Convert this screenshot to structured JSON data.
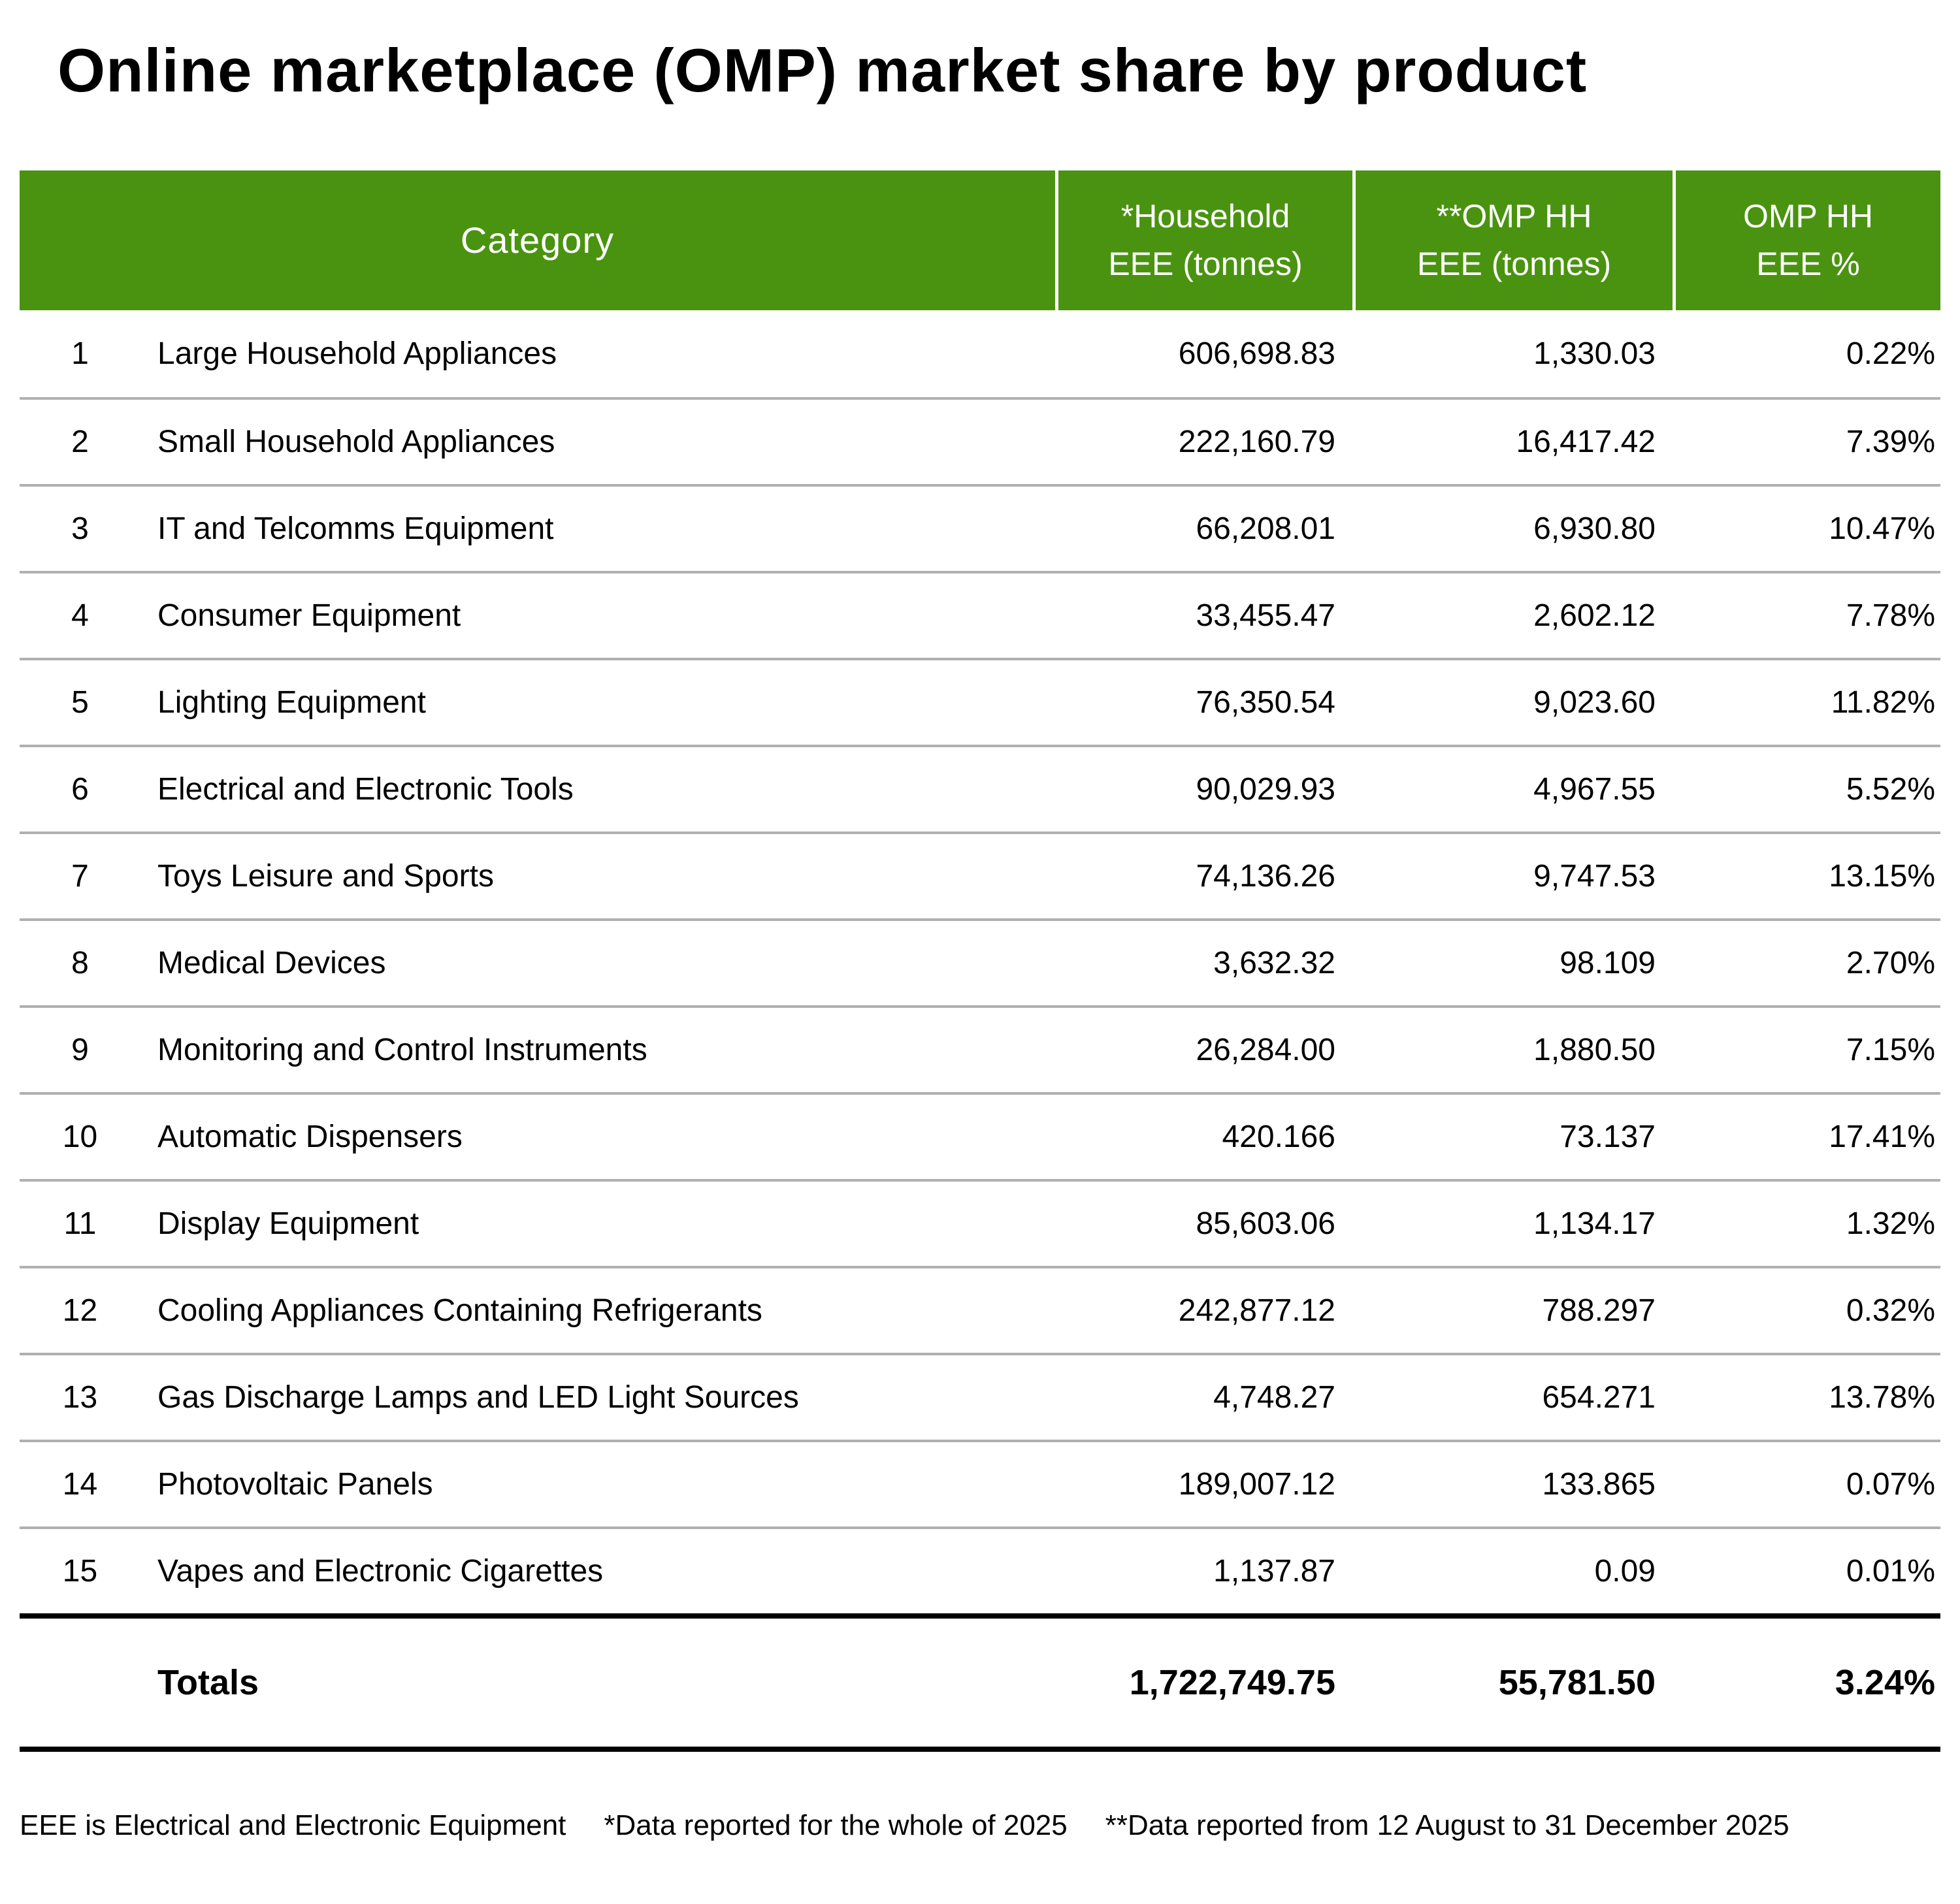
{
  "title": "Online marketplace (OMP) market share by product",
  "colors": {
    "header_bg": "#4a9310",
    "header_text": "#ffffff",
    "row_divider": "#b0b0b0",
    "totals_divider": "#000000"
  },
  "headers": {
    "category": "Category",
    "col2_line1": "*Household",
    "col2_line2": "EEE (tonnes)",
    "col3_line1": "**OMP HH",
    "col3_line2": "EEE (tonnes)",
    "col4_line1": "OMP HH",
    "col4_line2": "EEE %"
  },
  "rows": [
    {
      "num": "1",
      "category": "Large Household Appliances",
      "household": "606,698.83",
      "omp": "1,330.03",
      "pct": "0.22%"
    },
    {
      "num": "2",
      "category": "Small Household Appliances",
      "household": "222,160.79",
      "omp": "16,417.42",
      "pct": "7.39%"
    },
    {
      "num": "3",
      "category": "IT and Telcomms Equipment",
      "household": "66,208.01",
      "omp": "6,930.80",
      "pct": "10.47%"
    },
    {
      "num": "4",
      "category": "Consumer Equipment",
      "household": "33,455.47",
      "omp": "2,602.12",
      "pct": "7.78%"
    },
    {
      "num": "5",
      "category": "Lighting Equipment",
      "household": "76,350.54",
      "omp": "9,023.60",
      "pct": "11.82%"
    },
    {
      "num": "6",
      "category": "Electrical and Electronic Tools",
      "household": "90,029.93",
      "omp": "4,967.55",
      "pct": "5.52%"
    },
    {
      "num": "7",
      "category": "Toys Leisure and Sports",
      "household": "74,136.26",
      "omp": "9,747.53",
      "pct": "13.15%"
    },
    {
      "num": "8",
      "category": "Medical Devices",
      "household": "3,632.32",
      "omp": "98.109",
      "pct": "2.70%"
    },
    {
      "num": "9",
      "category": "Monitoring and Control Instruments",
      "household": "26,284.00",
      "omp": "1,880.50",
      "pct": "7.15%"
    },
    {
      "num": "10",
      "category": "Automatic Dispensers",
      "household": "420.166",
      "omp": "73.137",
      "pct": "17.41%"
    },
    {
      "num": "11",
      "category": "Display Equipment",
      "household": "85,603.06",
      "omp": "1,134.17",
      "pct": "1.32%"
    },
    {
      "num": "12",
      "category": "Cooling Appliances Containing Refrigerants",
      "household": "242,877.12",
      "omp": "788.297",
      "pct": "0.32%"
    },
    {
      "num": "13",
      "category": "Gas Discharge Lamps and LED Light Sources",
      "household": "4,748.27",
      "omp": "654.271",
      "pct": "13.78%"
    },
    {
      "num": "14",
      "category": "Photovoltaic Panels",
      "household": "189,007.12",
      "omp": "133.865",
      "pct": "0.07%"
    },
    {
      "num": "15",
      "category": "Vapes and Electronic Cigarettes",
      "household": "1,137.87",
      "omp": "0.09",
      "pct": "0.01%"
    }
  ],
  "totals": {
    "label": "Totals",
    "household": "1,722,749.75",
    "omp": "55,781.50",
    "pct": "3.24%"
  },
  "footnotes": {
    "f1": "EEE is Electrical and Electronic Equipment",
    "f2": "*Data reported for the whole of 2025",
    "f3": "**Data reported from 12 August to 31 December 2025"
  },
  "chart_data": {
    "type": "table",
    "title": "Online marketplace (OMP) market share by product",
    "columns": [
      "Category",
      "*Household EEE (tonnes)",
      "**OMP HH EEE (tonnes)",
      "OMP HH EEE %"
    ],
    "rows": [
      [
        "Large Household Appliances",
        606698.83,
        1330.03,
        0.22
      ],
      [
        "Small Household Appliances",
        222160.79,
        16417.42,
        7.39
      ],
      [
        "IT and Telcomms Equipment",
        66208.01,
        6930.8,
        10.47
      ],
      [
        "Consumer Equipment",
        33455.47,
        2602.12,
        7.78
      ],
      [
        "Lighting Equipment",
        76350.54,
        9023.6,
        11.82
      ],
      [
        "Electrical and Electronic Tools",
        90029.93,
        4967.55,
        5.52
      ],
      [
        "Toys Leisure and Sports",
        74136.26,
        9747.53,
        13.15
      ],
      [
        "Medical Devices",
        3632.32,
        98.109,
        2.7
      ],
      [
        "Monitoring and Control Instruments",
        26284.0,
        1880.5,
        7.15
      ],
      [
        "Automatic Dispensers",
        420.166,
        73.137,
        17.41
      ],
      [
        "Display Equipment",
        85603.06,
        1134.17,
        1.32
      ],
      [
        "Cooling Appliances Containing Refrigerants",
        242877.12,
        788.297,
        0.32
      ],
      [
        "Gas Discharge Lamps and LED Light Sources",
        4748.27,
        654.271,
        13.78
      ],
      [
        "Photovoltaic Panels",
        189007.12,
        133.865,
        0.07
      ],
      [
        "Vapes and Electronic Cigarettes",
        1137.87,
        0.09,
        0.01
      ]
    ],
    "totals_row": [
      "Totals",
      1722749.75,
      55781.5,
      3.24
    ],
    "footnotes": [
      "EEE is Electrical and Electronic Equipment",
      "*Data reported for the whole of 2025",
      "**Data reported from 12 August to 31 December 2025"
    ]
  }
}
